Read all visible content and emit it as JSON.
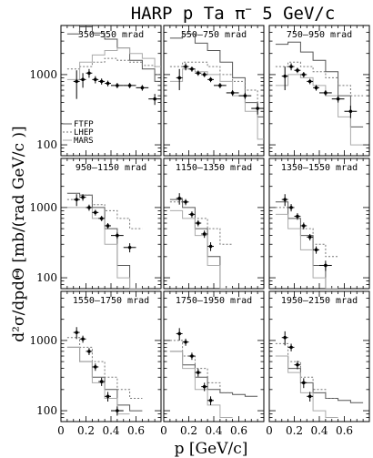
{
  "chart_data": {
    "type": "line",
    "title": "HARP p Ta π⁻ 5 GeV/c",
    "title_parts": {
      "pre": "HARP p Ta π",
      "sup": "−",
      "post": " 5 GeV/c"
    },
    "xlabel": "p [GeV/c]",
    "ylabel": "d²σ/dpdΘ [mb/(rad GeV/c )]",
    "xlim": [
      0,
      0.8
    ],
    "ylim": [
      70,
      5000
    ],
    "yscale": "log",
    "x_ticks": [
      0,
      0.2,
      0.4,
      0.6
    ],
    "x_tick_labels": [
      "0",
      "0.2",
      "0.4",
      "0.6"
    ],
    "y_ticks": [
      100,
      1000
    ],
    "y_tick_labels": [
      "100",
      "1000"
    ],
    "legend": {
      "placement": "lower-left of first panel",
      "entries": [
        "FTFP",
        "LHEP",
        "MARS"
      ]
    },
    "panels": [
      {
        "label": "350–550 mrad",
        "data": {
          "p": [
            0.125,
            0.175,
            0.225,
            0.275,
            0.325,
            0.375,
            0.45,
            0.55,
            0.65,
            0.75
          ],
          "y": [
            800,
            850,
            1050,
            850,
            800,
            750,
            700,
            700,
            650,
            450
          ],
          "yerr": [
            350,
            200,
            150,
            100,
            80,
            70,
            60,
            60,
            60,
            80
          ]
        },
        "models": [
          {
            "name": "FTFP",
            "p": [
              0.1,
              0.2,
              0.3,
              0.4,
              0.5,
              0.6,
              0.7,
              0.8
            ],
            "y": [
              3800,
              4800,
              3900,
              3200,
              2400,
              1600,
              1200,
              800
            ]
          },
          {
            "name": "LHEP",
            "p": [
              0.1,
              0.2,
              0.3,
              0.4,
              0.5,
              0.6,
              0.7,
              0.8
            ],
            "y": [
              1200,
              1300,
              1500,
              1700,
              1600,
              1500,
              1350,
              1000
            ]
          },
          {
            "name": "MARS",
            "p": [
              0.1,
              0.2,
              0.3,
              0.4,
              0.5,
              0.6,
              0.7,
              0.8
            ],
            "y": [
              850,
              1500,
              1900,
              2200,
              2400,
              2000,
              1700,
              1300
            ]
          }
        ]
      },
      {
        "label": "550–750 mrad",
        "data": {
          "p": [
            0.125,
            0.175,
            0.225,
            0.275,
            0.325,
            0.375,
            0.45,
            0.55,
            0.65,
            0.75
          ],
          "y": [
            900,
            1300,
            1200,
            1050,
            1000,
            850,
            700,
            550,
            500,
            330
          ],
          "yerr": [
            300,
            150,
            100,
            90,
            80,
            70,
            60,
            50,
            50,
            60
          ]
        },
        "models": [
          {
            "name": "FTFP",
            "p": [
              0.1,
              0.2,
              0.3,
              0.4,
              0.5,
              0.6,
              0.7,
              0.8
            ],
            "y": [
              3300,
              3800,
              2800,
              2200,
              1500,
              900,
              400,
              250
            ]
          },
          {
            "name": "LHEP",
            "p": [
              0.1,
              0.2,
              0.3,
              0.4,
              0.5,
              0.6,
              0.7,
              0.8
            ],
            "y": [
              1300,
              1500,
              1500,
              1300,
              1000,
              800,
              600,
              400
            ]
          },
          {
            "name": "MARS",
            "p": [
              0.1,
              0.2,
              0.3,
              0.4,
              0.5,
              0.6,
              0.7,
              0.8
            ],
            "y": [
              800,
              1200,
              1100,
              1000,
              800,
              500,
              300,
              120
            ]
          }
        ]
      },
      {
        "label": "750–950 mrad",
        "data": {
          "p": [
            0.125,
            0.175,
            0.225,
            0.275,
            0.325,
            0.375,
            0.45,
            0.55,
            0.65
          ],
          "y": [
            950,
            1300,
            1150,
            1000,
            800,
            650,
            550,
            450,
            300
          ],
          "yerr": [
            350,
            150,
            100,
            90,
            70,
            60,
            50,
            50,
            60
          ]
        },
        "models": [
          {
            "name": "FTFP",
            "p": [
              0.1,
              0.2,
              0.3,
              0.4,
              0.5,
              0.6,
              0.7
            ],
            "y": [
              2700,
              2900,
              2100,
              1600,
              1100,
              500,
              180
            ]
          },
          {
            "name": "LHEP",
            "p": [
              0.1,
              0.2,
              0.3,
              0.4,
              0.5,
              0.6,
              0.7
            ],
            "y": [
              1300,
              1500,
              1300,
              1100,
              900,
              700,
              500
            ]
          },
          {
            "name": "MARS",
            "p": [
              0.1,
              0.2,
              0.3,
              0.4,
              0.5,
              0.6,
              0.7
            ],
            "y": [
              700,
              1000,
              900,
              700,
              500,
              250,
              100
            ]
          }
        ]
      },
      {
        "label": "950–1150 mrad",
        "data": {
          "p": [
            0.125,
            0.175,
            0.225,
            0.275,
            0.325,
            0.375,
            0.45,
            0.55
          ],
          "y": [
            1300,
            1400,
            1000,
            850,
            700,
            550,
            400,
            270
          ],
          "yerr": [
            250,
            150,
            100,
            80,
            60,
            50,
            40,
            40
          ]
        },
        "models": [
          {
            "name": "FTFP",
            "p": [
              0.1,
              0.2,
              0.3,
              0.4,
              0.5,
              0.6
            ],
            "y": [
              1600,
              1500,
              1000,
              500,
              150,
              70
            ]
          },
          {
            "name": "LHEP",
            "p": [
              0.1,
              0.2,
              0.3,
              0.4,
              0.5,
              0.6
            ],
            "y": [
              1300,
              1500,
              1100,
              900,
              700,
              500
            ]
          },
          {
            "name": "MARS",
            "p": [
              0.1,
              0.2,
              0.3,
              0.4,
              0.5,
              0.6
            ],
            "y": [
              1000,
              1000,
              700,
              300,
              100,
              70
            ]
          }
        ]
      },
      {
        "label": "1150–1350 mrad",
        "data": {
          "p": [
            0.125,
            0.175,
            0.225,
            0.275,
            0.325,
            0.375
          ],
          "y": [
            1350,
            1200,
            800,
            600,
            420,
            280
          ],
          "yerr": [
            250,
            120,
            80,
            60,
            50,
            40
          ]
        },
        "models": [
          {
            "name": "FTFP",
            "p": [
              0.1,
              0.2,
              0.3,
              0.4,
              0.5
            ],
            "y": [
              1300,
              1000,
              500,
              200,
              70
            ]
          },
          {
            "name": "LHEP",
            "p": [
              0.1,
              0.2,
              0.3,
              0.4,
              0.5
            ],
            "y": [
              1200,
              1000,
              700,
              500,
              300
            ]
          },
          {
            "name": "MARS",
            "p": [
              0.1,
              0.2,
              0.3,
              0.4,
              0.5
            ],
            "y": [
              900,
              700,
              400,
              150,
              70
            ]
          }
        ]
      },
      {
        "label": "1350–1550 mrad",
        "data": {
          "p": [
            0.125,
            0.175,
            0.225,
            0.275,
            0.325,
            0.375,
            0.45
          ],
          "y": [
            1300,
            1000,
            750,
            550,
            380,
            250,
            150
          ],
          "yerr": [
            250,
            120,
            80,
            60,
            40,
            30,
            25
          ]
        },
        "models": [
          {
            "name": "FTFP",
            "p": [
              0.1,
              0.2,
              0.3,
              0.4,
              0.5
            ],
            "y": [
              1200,
              700,
              400,
              150,
              70
            ]
          },
          {
            "name": "LHEP",
            "p": [
              0.1,
              0.2,
              0.3,
              0.4,
              0.5
            ],
            "y": [
              1000,
              700,
              500,
              300,
              200
            ]
          },
          {
            "name": "MARS",
            "p": [
              0.1,
              0.2,
              0.3,
              0.4,
              0.5
            ],
            "y": [
              800,
              500,
              250,
              100,
              70
            ]
          }
        ]
      },
      {
        "label": "1550–1750 mrad",
        "data": {
          "p": [
            0.125,
            0.175,
            0.225,
            0.275,
            0.325,
            0.375,
            0.45
          ],
          "y": [
            1300,
            1050,
            700,
            420,
            260,
            160,
            100
          ],
          "yerr": [
            250,
            120,
            80,
            50,
            35,
            25,
            15
          ]
        },
        "models": [
          {
            "name": "FTFP",
            "p": [
              0.1,
              0.2,
              0.3,
              0.4,
              0.5,
              0.6
            ],
            "y": [
              800,
              500,
              300,
              200,
              120,
              100
            ]
          },
          {
            "name": "LHEP",
            "p": [
              0.1,
              0.2,
              0.3,
              0.4,
              0.5,
              0.6
            ],
            "y": [
              1100,
              800,
              500,
              300,
              200,
              150
            ]
          },
          {
            "name": "MARS",
            "p": [
              0.1,
              0.2,
              0.3,
              0.4,
              0.5
            ],
            "y": [
              800,
              500,
              250,
              150,
              90
            ]
          }
        ]
      },
      {
        "label": "1750–1950 mrad",
        "data": {
          "p": [
            0.125,
            0.175,
            0.225,
            0.275,
            0.325,
            0.375
          ],
          "y": [
            1250,
            950,
            600,
            350,
            220,
            140
          ],
          "yerr": [
            250,
            110,
            70,
            45,
            30,
            20
          ]
        },
        "models": [
          {
            "name": "FTFP",
            "p": [
              0.1,
              0.2,
              0.3,
              0.4,
              0.5,
              0.6,
              0.7
            ],
            "y": [
              700,
              450,
              300,
              200,
              180,
              170,
              160
            ]
          },
          {
            "name": "LHEP",
            "p": [
              0.1,
              0.2,
              0.3,
              0.4,
              0.5
            ],
            "y": [
              1000,
              600,
              400,
              250,
              180
            ]
          },
          {
            "name": "MARS",
            "p": [
              0.1,
              0.2,
              0.3,
              0.4,
              0.5
            ],
            "y": [
              700,
              400,
              200,
              120,
              80
            ]
          }
        ]
      },
      {
        "label": "1950–2150 mrad",
        "data": {
          "p": [
            0.125,
            0.175,
            0.225,
            0.275,
            0.325
          ],
          "y": [
            1100,
            800,
            450,
            250,
            160
          ],
          "yerr": [
            250,
            100,
            60,
            40,
            25
          ]
        },
        "models": [
          {
            "name": "FTFP",
            "p": [
              0.1,
              0.2,
              0.3,
              0.4,
              0.5,
              0.6,
              0.7
            ],
            "y": [
              600,
              400,
              250,
              180,
              150,
              140,
              130
            ]
          },
          {
            "name": "LHEP",
            "p": [
              0.1,
              0.2,
              0.3,
              0.4,
              0.5
            ],
            "y": [
              900,
              500,
              300,
              200,
              150
            ]
          },
          {
            "name": "MARS",
            "p": [
              0.1,
              0.2,
              0.3,
              0.4,
              0.5
            ],
            "y": [
              600,
              350,
              180,
              100,
              80
            ]
          }
        ]
      }
    ]
  }
}
